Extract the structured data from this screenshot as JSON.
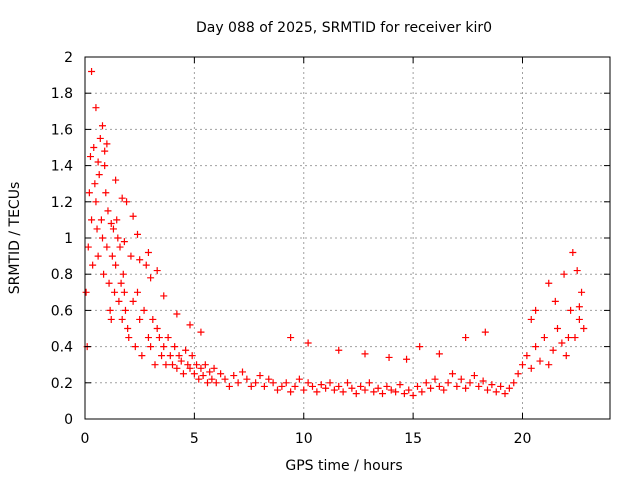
{
  "chart_data": {
    "type": "scatter",
    "title": "Day 088 of 2025, SRMTID for receiver kir0",
    "xlabel": "GPS time / hours",
    "ylabel": "SRMTID / TECUs",
    "xlim": [
      0,
      24
    ],
    "ylim": [
      0,
      2
    ],
    "xticks": [
      0,
      5,
      10,
      15,
      20
    ],
    "xtick_labels": [
      "0",
      "5",
      "10",
      "15",
      "20"
    ],
    "yticks": [
      0,
      0.2,
      0.4,
      0.6,
      0.8,
      1,
      1.2,
      1.4,
      1.6,
      1.8,
      2
    ],
    "ytick_labels": [
      "0",
      "0.2",
      "0.4",
      "0.6",
      "0.8",
      "1",
      "1.2",
      "1.4",
      "1.6",
      "1.8",
      "2"
    ],
    "grid": true,
    "marker": "+",
    "color": "#ff0000",
    "series": [
      {
        "name": "SRMTID",
        "x": [
          0.05,
          0.1,
          0.15,
          0.2,
          0.25,
          0.3,
          0.35,
          0.4,
          0.45,
          0.5,
          0.55,
          0.6,
          0.65,
          0.7,
          0.75,
          0.8,
          0.85,
          0.9,
          0.95,
          1.0,
          1.05,
          1.1,
          1.15,
          1.2,
          1.25,
          1.3,
          1.35,
          1.4,
          1.45,
          1.5,
          1.55,
          1.6,
          1.65,
          1.7,
          1.75,
          1.8,
          1.85,
          1.9,
          1.95,
          2.0,
          2.1,
          2.2,
          2.3,
          2.4,
          2.5,
          2.6,
          2.7,
          2.8,
          2.9,
          3.0,
          3.1,
          3.2,
          3.3,
          3.4,
          3.5,
          3.6,
          3.7,
          3.8,
          3.9,
          4.0,
          4.1,
          4.2,
          4.3,
          4.4,
          4.5,
          4.6,
          4.7,
          4.8,
          4.9,
          5.0,
          5.1,
          5.2,
          5.3,
          5.4,
          5.5,
          5.6,
          5.7,
          5.8,
          5.9,
          6.0,
          6.2,
          6.4,
          6.6,
          6.8,
          7.0,
          7.2,
          7.4,
          7.6,
          7.8,
          8.0,
          8.2,
          8.4,
          8.6,
          8.8,
          9.0,
          9.2,
          9.4,
          9.6,
          9.8,
          10.0,
          10.2,
          10.4,
          10.6,
          10.8,
          11.0,
          11.2,
          11.4,
          11.6,
          11.8,
          12.0,
          12.2,
          12.4,
          12.6,
          12.8,
          13.0,
          13.2,
          13.4,
          13.6,
          13.8,
          14.0,
          14.2,
          14.4,
          14.6,
          14.8,
          15.0,
          15.2,
          15.4,
          15.6,
          15.8,
          16.0,
          16.2,
          16.4,
          16.6,
          16.8,
          17.0,
          17.2,
          17.4,
          17.6,
          17.8,
          18.0,
          18.2,
          18.4,
          18.6,
          18.8,
          19.0,
          19.2,
          19.4,
          19.6,
          19.8,
          20.0,
          20.2,
          20.4,
          20.6,
          20.8,
          21.0,
          21.2,
          21.4,
          21.6,
          21.8,
          22.0,
          22.2,
          22.4,
          22.6,
          22.8,
          0.3,
          0.5,
          0.8,
          1.0,
          1.4,
          1.7,
          2.2,
          2.4,
          2.9,
          3.3,
          0.6,
          0.9,
          1.2,
          1.8,
          2.5,
          3.0,
          3.6,
          4.2,
          4.8,
          5.3,
          9.4,
          10.2,
          11.6,
          12.8,
          13.9,
          14.7,
          15.3,
          16.2,
          17.4,
          18.3,
          20.4,
          20.6,
          21.2,
          21.5,
          21.9,
          22.1,
          22.3,
          22.5,
          22.7,
          22.6
        ],
        "y": [
          0.7,
          0.4,
          0.95,
          1.25,
          1.45,
          1.1,
          0.85,
          1.5,
          1.3,
          1.2,
          1.05,
          0.9,
          1.35,
          1.55,
          1.1,
          1.0,
          0.8,
          1.4,
          1.25,
          0.95,
          1.15,
          0.75,
          0.6,
          0.55,
          0.9,
          1.05,
          0.7,
          0.85,
          1.1,
          1.0,
          0.65,
          0.95,
          0.75,
          0.55,
          0.8,
          0.7,
          0.6,
          1.2,
          0.5,
          0.45,
          0.9,
          0.65,
          0.4,
          0.7,
          0.55,
          0.35,
          0.6,
          0.85,
          0.45,
          0.4,
          0.55,
          0.3,
          0.5,
          0.45,
          0.35,
          0.4,
          0.3,
          0.45,
          0.35,
          0.3,
          0.4,
          0.28,
          0.35,
          0.32,
          0.25,
          0.38,
          0.3,
          0.28,
          0.35,
          0.25,
          0.3,
          0.22,
          0.28,
          0.24,
          0.3,
          0.2,
          0.26,
          0.22,
          0.28,
          0.2,
          0.25,
          0.22,
          0.18,
          0.24,
          0.2,
          0.26,
          0.22,
          0.18,
          0.2,
          0.24,
          0.18,
          0.22,
          0.2,
          0.16,
          0.18,
          0.2,
          0.15,
          0.18,
          0.22,
          0.16,
          0.2,
          0.18,
          0.15,
          0.19,
          0.17,
          0.2,
          0.16,
          0.18,
          0.15,
          0.2,
          0.17,
          0.14,
          0.18,
          0.16,
          0.2,
          0.15,
          0.17,
          0.14,
          0.18,
          0.16,
          0.15,
          0.19,
          0.14,
          0.16,
          0.13,
          0.18,
          0.15,
          0.2,
          0.17,
          0.22,
          0.18,
          0.16,
          0.2,
          0.25,
          0.18,
          0.22,
          0.17,
          0.2,
          0.24,
          0.18,
          0.21,
          0.16,
          0.19,
          0.15,
          0.18,
          0.14,
          0.17,
          0.2,
          0.25,
          0.3,
          0.35,
          0.28,
          0.4,
          0.32,
          0.45,
          0.3,
          0.38,
          0.5,
          0.42,
          0.35,
          0.6,
          0.45,
          0.55,
          0.5,
          1.92,
          1.72,
          1.62,
          1.52,
          1.32,
          1.22,
          1.12,
          1.02,
          0.92,
          0.82,
          1.42,
          1.48,
          1.08,
          0.98,
          0.88,
          0.78,
          0.68,
          0.58,
          0.52,
          0.48,
          0.45,
          0.42,
          0.38,
          0.36,
          0.34,
          0.33,
          0.4,
          0.36,
          0.45,
          0.48,
          0.55,
          0.6,
          0.75,
          0.65,
          0.8,
          0.45,
          0.92,
          0.82,
          0.7,
          0.62
        ]
      }
    ]
  }
}
